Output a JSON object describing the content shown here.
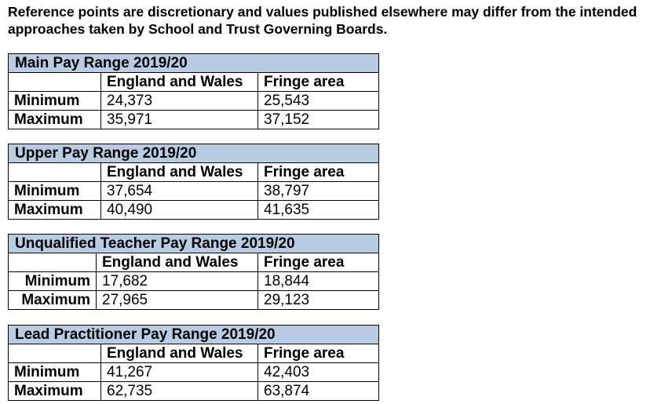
{
  "intro": "Reference points are discretionary and values published elsewhere may differ from the intended approaches taken by School and Trust Governing Boards.",
  "column_headers": [
    "England and Wales",
    "Fringe area"
  ],
  "tables": [
    {
      "title": "Main Pay Range 2019/20",
      "rows": [
        {
          "label": "Minimum",
          "ew": "24,373",
          "fringe": "25,543"
        },
        {
          "label": "Maximum",
          "ew": "35,971",
          "fringe": "37,152"
        }
      ]
    },
    {
      "title": "Upper Pay Range 2019/20",
      "rows": [
        {
          "label": "Minimum",
          "ew": "37,654",
          "fringe": "38,797"
        },
        {
          "label": "Maximum",
          "ew": "40,490",
          "fringe": "41,635"
        }
      ]
    },
    {
      "title": "Unqualified Teacher Pay Range 2019/20",
      "rows": [
        {
          "label": "Minimum",
          "ew": "17,682",
          "fringe": "18,844"
        },
        {
          "label": "Maximum",
          "ew": "27,965",
          "fringe": "29,123"
        }
      ]
    },
    {
      "title": "Lead Practitioner Pay Range 2019/20",
      "rows": [
        {
          "label": "Minimum",
          "ew": "41,267",
          "fringe": "42,403"
        },
        {
          "label": "Maximum",
          "ew": "62,735",
          "fringe": "63,874"
        }
      ]
    }
  ]
}
